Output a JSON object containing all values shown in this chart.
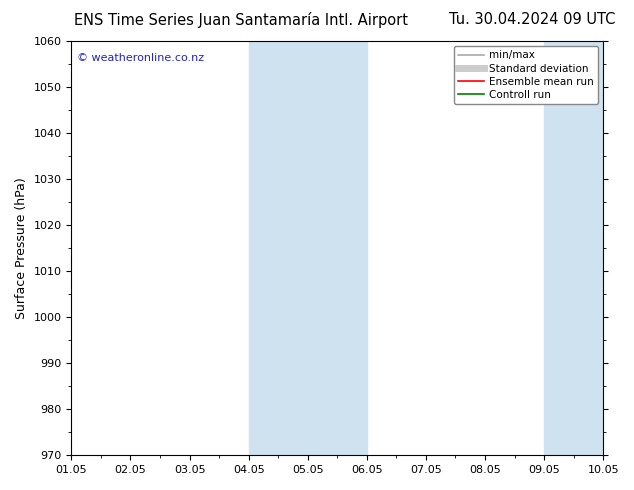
{
  "title_left": "ENS Time Series Juan Santamaría Intl. Airport",
  "title_right": "Tu. 30.04.2024 09 UTC",
  "ylabel": "Surface Pressure (hPa)",
  "ylim": [
    970,
    1060
  ],
  "yticks": [
    970,
    980,
    990,
    1000,
    1010,
    1020,
    1030,
    1040,
    1050,
    1060
  ],
  "xtick_labels": [
    "01.05",
    "02.05",
    "03.05",
    "04.05",
    "05.05",
    "06.05",
    "07.05",
    "08.05",
    "09.05",
    "10.05"
  ],
  "shaded_bands": [
    {
      "xstart": 3,
      "xend": 5
    },
    {
      "xstart": 8,
      "xend": 9
    }
  ],
  "shade_color": "#cfe2f0",
  "watermark": "© weatheronline.co.nz",
  "watermark_color": "#2222cc",
  "legend_labels": [
    "min/max",
    "Standard deviation",
    "Ensemble mean run",
    "Controll run"
  ],
  "legend_line_colors": [
    "#aaaaaa",
    "#cccccc",
    "#ff0000",
    "#008000"
  ],
  "background_color": "#ffffff",
  "axes_bg_color": "#ffffff",
  "title_fontsize": 10.5,
  "tick_fontsize": 8,
  "ylabel_fontsize": 9,
  "legend_fontsize": 7.5
}
